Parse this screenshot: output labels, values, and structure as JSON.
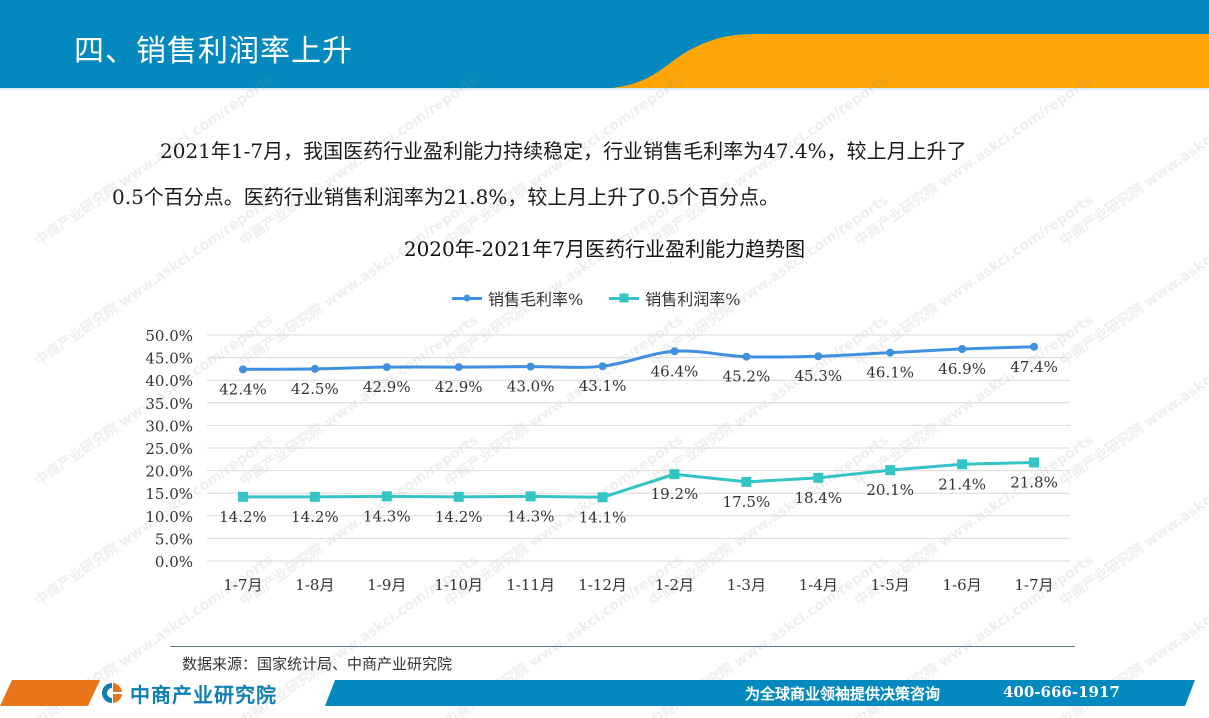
{
  "header": {
    "title": "四、销售利润率上升",
    "colors": {
      "blue": "#0389bd",
      "orange": "#fea508"
    }
  },
  "paragraph": {
    "line1": "2021年1-7月，我国医药行业盈利能力持续稳定，行业销售毛利率为47.4%，较上月上升了",
    "line2": "0.5个百分点。医药行业销售利润率为21.8%，较上月上升了0.5个百分点。"
  },
  "chart_data": {
    "type": "line",
    "title": "2020年-2021年7月医药行业盈利能力趋势图",
    "xlabel": "",
    "ylabel": "",
    "categories": [
      "1-7月",
      "1-8月",
      "1-9月",
      "1-10月",
      "1-11月",
      "1-12月",
      "1-2月",
      "1-3月",
      "1-4月",
      "1-5月",
      "1-6月",
      "1-7月"
    ],
    "series": [
      {
        "name": "销售毛利率%",
        "values": [
          42.4,
          42.5,
          42.9,
          42.9,
          43.0,
          43.1,
          46.4,
          45.2,
          45.3,
          46.1,
          46.9,
          47.4
        ],
        "labels": [
          "42.4%",
          "42.5%",
          "42.9%",
          "42.9%",
          "43.0%",
          "43.1%",
          "46.4%",
          "45.2%",
          "45.3%",
          "46.1%",
          "46.9%",
          "47.4%"
        ],
        "color": "#3f91e0",
        "marker": "circle",
        "smooth": true
      },
      {
        "name": "销售利润率%",
        "values": [
          14.2,
          14.2,
          14.3,
          14.2,
          14.3,
          14.1,
          19.2,
          17.5,
          18.4,
          20.1,
          21.4,
          21.8
        ],
        "labels": [
          "14.2%",
          "14.2%",
          "14.3%",
          "14.2%",
          "14.3%",
          "14.1%",
          "19.2%",
          "17.5%",
          "18.4%",
          "20.1%",
          "21.4%",
          "21.8%"
        ],
        "color": "#35c4c6",
        "marker": "square",
        "smooth": false
      }
    ],
    "ylim": [
      0,
      50
    ],
    "yticks": [
      "0.0%",
      "5.0%",
      "10.0%",
      "15.0%",
      "20.0%",
      "25.0%",
      "30.0%",
      "35.0%",
      "40.0%",
      "45.0%",
      "50.0%"
    ],
    "ytick_values": [
      0,
      5,
      10,
      15,
      20,
      25,
      30,
      35,
      40,
      45,
      50
    ],
    "grid": true,
    "legend_position": "top-center"
  },
  "source": {
    "text": "数据来源：国家统计局、中商产业研究院"
  },
  "footer": {
    "logo_text": "中商产业研究院",
    "slogan": "为全球商业领袖提供决策咨询",
    "phone": "400-666-1917"
  },
  "watermark": {
    "brand": "中商产业研究院",
    "url": "www.askci.com/reports"
  }
}
